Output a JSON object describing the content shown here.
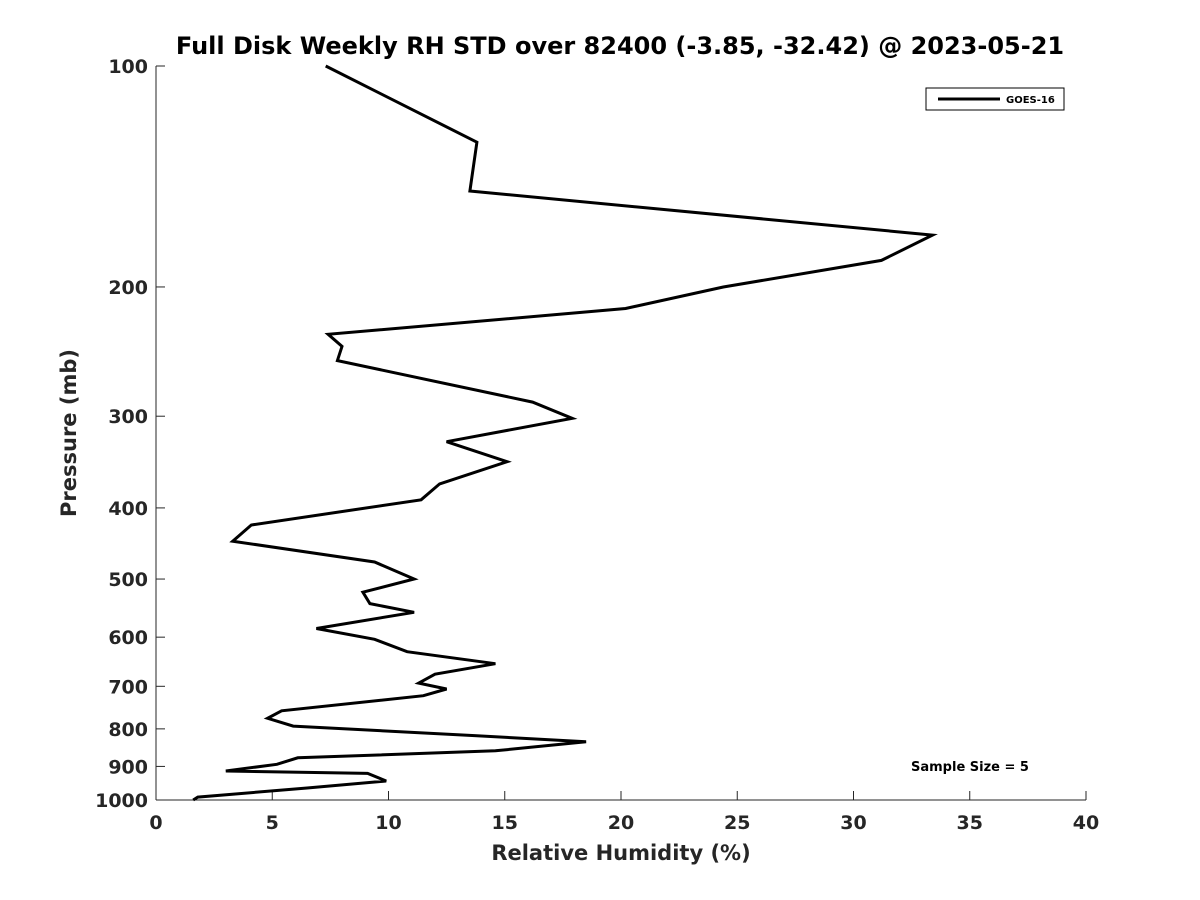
{
  "chart_data": {
    "type": "line",
    "title": "Full Disk Weekly RH STD over 82400 (-3.85, -32.42) @ 2023-05-21",
    "xlabel": "Relative Humidity (%)",
    "ylabel": "Pressure (mb)",
    "xlim": [
      0,
      40
    ],
    "ylim": [
      1000,
      100
    ],
    "yscale": "log",
    "y_reversed": true,
    "xticks": [
      0,
      5,
      10,
      15,
      20,
      25,
      30,
      35,
      40
    ],
    "yticks": [
      100,
      200,
      300,
      400,
      500,
      600,
      700,
      800,
      900,
      1000
    ],
    "grid": false,
    "legend_position": "top-right",
    "annotation": "Sample Size = 5",
    "series": [
      {
        "name": "GOES-16",
        "color": "#000000",
        "points": [
          [
            7.3,
            100
          ],
          [
            13.8,
            127
          ],
          [
            13.5,
            148
          ],
          [
            33.4,
            170
          ],
          [
            31.2,
            184
          ],
          [
            24.4,
            200
          ],
          [
            20.2,
            214
          ],
          [
            7.4,
            232
          ],
          [
            8.0,
            241
          ],
          [
            7.8,
            252
          ],
          [
            16.2,
            287
          ],
          [
            17.9,
            302
          ],
          [
            12.5,
            325
          ],
          [
            15.1,
            346
          ],
          [
            12.2,
            371
          ],
          [
            11.4,
            390
          ],
          [
            4.1,
            422
          ],
          [
            3.3,
            444
          ],
          [
            9.4,
            474
          ],
          [
            11.1,
            500
          ],
          [
            8.9,
            521
          ],
          [
            9.2,
            540
          ],
          [
            11.1,
            555
          ],
          [
            6.9,
            584
          ],
          [
            9.4,
            604
          ],
          [
            10.8,
            628
          ],
          [
            14.6,
            652
          ],
          [
            12.0,
            674
          ],
          [
            11.3,
            693
          ],
          [
            12.5,
            706
          ],
          [
            11.5,
            721
          ],
          [
            5.4,
            756
          ],
          [
            4.8,
            774
          ],
          [
            5.9,
            793
          ],
          [
            13.7,
            817
          ],
          [
            18.5,
            833
          ],
          [
            14.6,
            857
          ],
          [
            6.1,
            876
          ],
          [
            5.2,
            894
          ],
          [
            3.0,
            913
          ],
          [
            9.1,
            920
          ],
          [
            9.9,
            942
          ],
          [
            6.5,
            963
          ],
          [
            1.8,
            991
          ],
          [
            1.6,
            1000
          ]
        ]
      }
    ]
  }
}
